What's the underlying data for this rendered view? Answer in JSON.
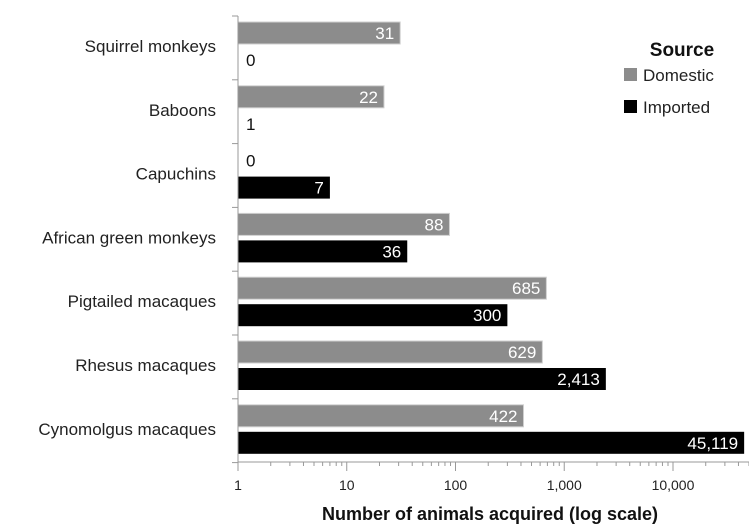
{
  "chart_data": {
    "type": "bar",
    "orientation": "horizontal",
    "categories": [
      "Squirrel monkeys",
      "Baboons",
      "Capuchins",
      "African green monkeys",
      "Pigtailed macaques",
      "Rhesus macaques",
      "Cynomolgus macaques"
    ],
    "series": [
      {
        "name": "Domestic",
        "color": "#8c8c8c",
        "values": [
          31,
          22,
          0,
          88,
          685,
          629,
          422
        ],
        "labels": [
          "31",
          "22",
          "0",
          "88",
          "685",
          "629",
          "422"
        ]
      },
      {
        "name": "Imported",
        "color": "#000000",
        "values": [
          0,
          1,
          7,
          36,
          300,
          2413,
          45119
        ],
        "labels": [
          "0",
          "1",
          "7",
          "36",
          "300",
          "2,413",
          "45,119"
        ]
      }
    ],
    "xlabel": "Number of animals acquired (log scale)",
    "xscale": "log",
    "xlim": [
      1,
      50000
    ],
    "xticks": [
      1,
      10,
      100,
      1000,
      10000
    ],
    "xtick_labels": [
      "1",
      "10",
      "100",
      "1,000",
      "10,000"
    ],
    "legend": {
      "title": "Source",
      "position": "top-right",
      "entries": [
        "Domestic",
        "Imported"
      ]
    },
    "grid": false
  }
}
